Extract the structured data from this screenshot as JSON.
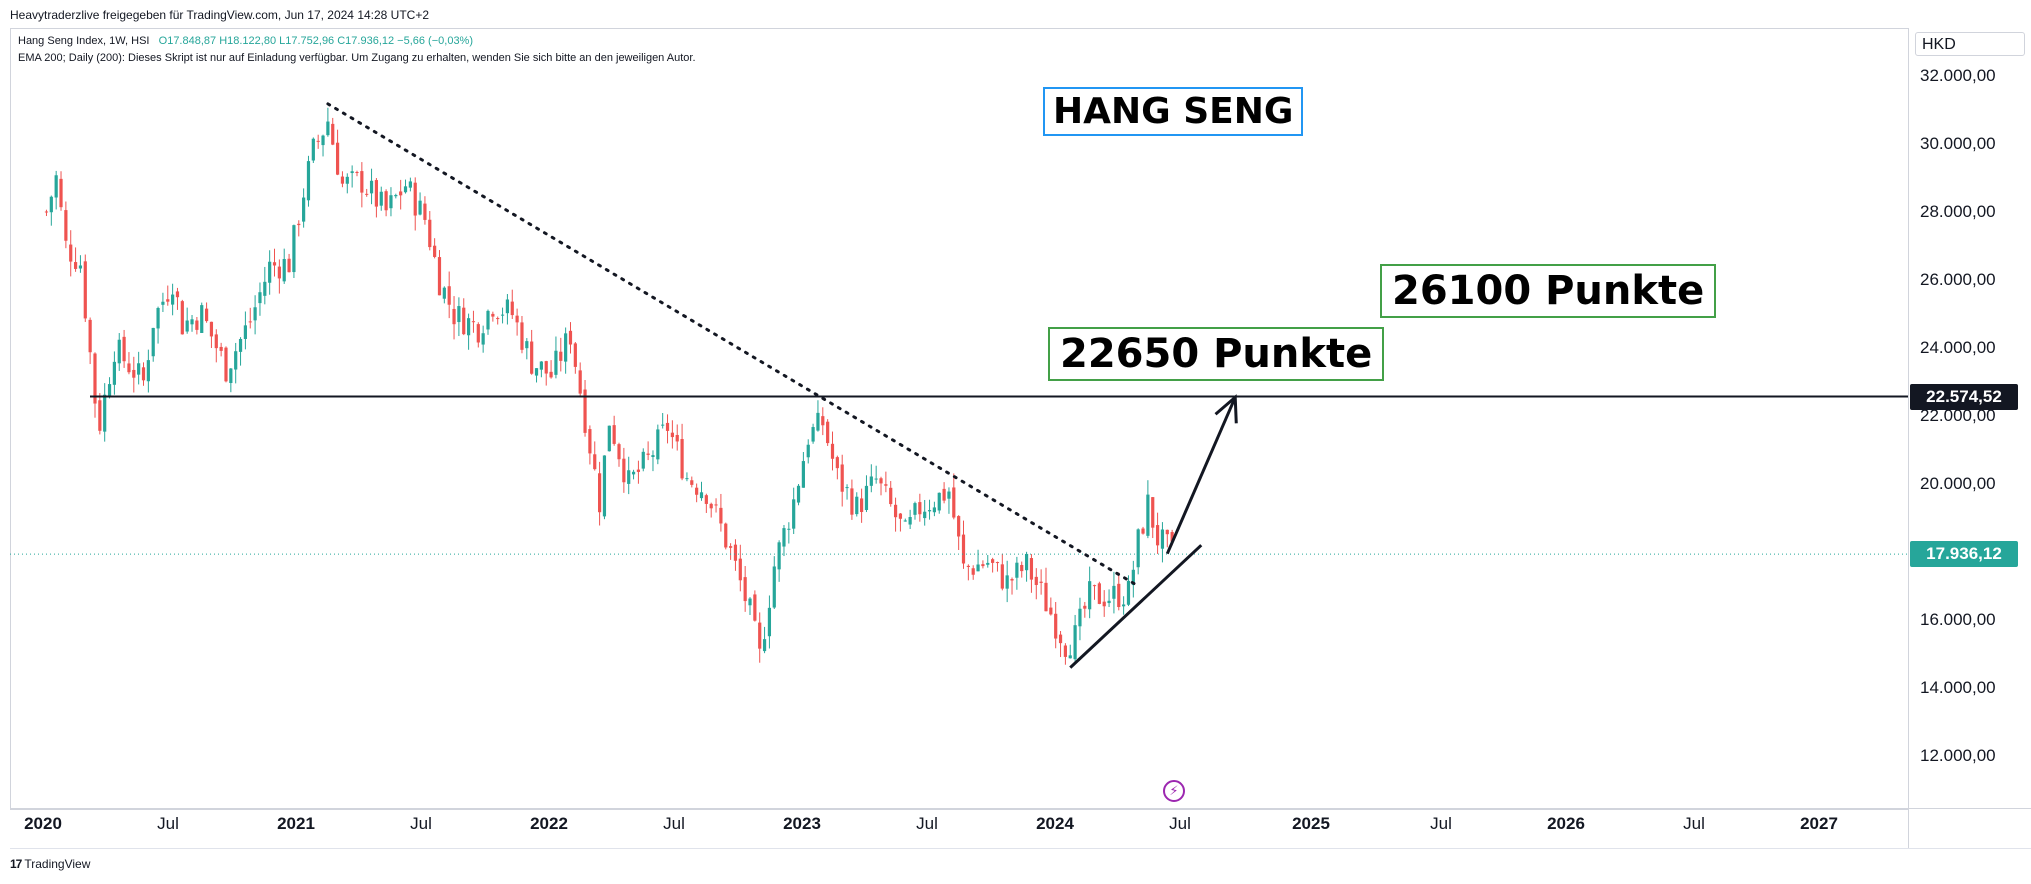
{
  "header": {
    "published": "Heavytraderzlive freigegeben für TradingView.com, Jun 17, 2024 14:28 UTC+2"
  },
  "legend": {
    "symbol": "Hang Seng Index, 1W, HSI",
    "ohlc": "O17.848,87  H18.122,80  L17.752,96  C17.936,12  −5,66 (−0,03%)",
    "indicator": "EMA 200; Daily (200): Dieses Skript ist nur auf Einladung verfügbar. Um Zugang zu erhalten, wenden Sie sich bitte an den jeweiligen Autor."
  },
  "price_axis": {
    "currency": "HKD",
    "labels": [
      "32.000,00",
      "30.000,00",
      "28.000,00",
      "26.000,00",
      "24.000,00",
      "22.000,00",
      "20.000,00",
      "16.000,00",
      "14.000,00",
      "12.000,00"
    ]
  },
  "price_tags": {
    "level": "22.574,52",
    "last": "17.936,12"
  },
  "annotations": {
    "title": "HANG SENG",
    "target1": "22650 Punkte",
    "target2": "26100 Punkte"
  },
  "branding": {
    "logo": "TradingView"
  },
  "colors": {
    "up": "#26a69a",
    "down": "#ef5350",
    "last_price": "#26a69a",
    "level_tag": "#131722",
    "title_border": "#2196f3",
    "target_border": "#43a047",
    "flash_icon": "#9c27b0"
  },
  "icons": {
    "event": "flash-icon"
  },
  "chart_data": {
    "type": "candlestick",
    "interval": "1W",
    "y_scale": "linear",
    "ylim": [
      10000,
      32500
    ],
    "x_ticks": [
      "2020",
      "Jul",
      "2021",
      "Jul",
      "2022",
      "Jul",
      "2023",
      "Jul",
      "2024",
      "Jul",
      "2025",
      "Jul",
      "2026",
      "Jul",
      "2027"
    ],
    "horizontal_line": 22574.52,
    "last_close": 17936.12,
    "downtrend_line": {
      "from": [
        "2021-02-15",
        31180
      ],
      "to": [
        "2024-04-29",
        17000
      ]
    },
    "uptrend_line": {
      "from": [
        "2024-01-22",
        14600
      ],
      "to": [
        "2024-07-29",
        18200
      ]
    },
    "projection_arrow": {
      "from": [
        "2024-06-10",
        17950
      ],
      "to": [
        "2024-09-16",
        22550
      ]
    },
    "price_path": [
      [
        "2020-01-06",
        28000
      ],
      [
        "2020-01-20",
        29000
      ],
      [
        "2020-02-03",
        27000
      ],
      [
        "2020-02-24",
        26500
      ],
      [
        "2020-03-16",
        22500
      ],
      [
        "2020-03-23",
        21800
      ],
      [
        "2020-04-13",
        24000
      ],
      [
        "2020-05-25",
        23000
      ],
      [
        "2020-06-08",
        24800
      ],
      [
        "2020-07-06",
        26000
      ],
      [
        "2020-07-20",
        24700
      ],
      [
        "2020-08-17",
        25000
      ],
      [
        "2020-09-21",
        23400
      ],
      [
        "2020-10-26",
        24800
      ],
      [
        "2020-11-23",
        26400
      ],
      [
        "2020-12-21",
        26500
      ],
      [
        "2021-01-11",
        28600
      ],
      [
        "2021-01-25",
        29800
      ],
      [
        "2021-02-15",
        30700
      ],
      [
        "2021-03-08",
        28800
      ],
      [
        "2021-04-05",
        28900
      ],
      [
        "2021-05-10",
        28000
      ],
      [
        "2021-06-07",
        28800
      ],
      [
        "2021-07-05",
        27800
      ],
      [
        "2021-07-26",
        26000
      ],
      [
        "2021-08-16",
        25000
      ],
      [
        "2021-09-20",
        24600
      ],
      [
        "2021-10-11",
        25300
      ],
      [
        "2021-11-08",
        25000
      ],
      [
        "2021-12-06",
        23600
      ],
      [
        "2022-01-03",
        23200
      ],
      [
        "2022-01-31",
        24400
      ],
      [
        "2022-03-14",
        19500
      ],
      [
        "2022-03-28",
        21900
      ],
      [
        "2022-04-25",
        20000
      ],
      [
        "2022-05-23",
        20700
      ],
      [
        "2022-06-20",
        21700
      ],
      [
        "2022-07-18",
        20200
      ],
      [
        "2022-08-15",
        19800
      ],
      [
        "2022-09-19",
        18000
      ],
      [
        "2022-10-17",
        16200
      ],
      [
        "2022-10-31",
        14900
      ],
      [
        "2022-11-21",
        17600
      ],
      [
        "2022-12-19",
        19500
      ],
      [
        "2023-01-09",
        21400
      ],
      [
        "2023-01-30",
        21800
      ],
      [
        "2023-02-20",
        20200
      ],
      [
        "2023-03-20",
        19300
      ],
      [
        "2023-04-17",
        20100
      ],
      [
        "2023-05-29",
        18500
      ],
      [
        "2023-06-19",
        19300
      ],
      [
        "2023-07-31",
        19800
      ],
      [
        "2023-08-21",
        17500
      ],
      [
        "2023-09-25",
        17700
      ],
      [
        "2023-10-23",
        17100
      ],
      [
        "2023-11-20",
        17600
      ],
      [
        "2023-12-18",
        16500
      ],
      [
        "2024-01-15",
        15300
      ],
      [
        "2024-01-29",
        15500
      ],
      [
        "2024-02-19",
        16700
      ],
      [
        "2024-03-18",
        16700
      ],
      [
        "2024-04-15",
        16800
      ],
      [
        "2024-04-29",
        18300
      ],
      [
        "2024-05-13",
        19400
      ],
      [
        "2024-05-27",
        18400
      ],
      [
        "2024-06-17",
        17936
      ]
    ]
  }
}
